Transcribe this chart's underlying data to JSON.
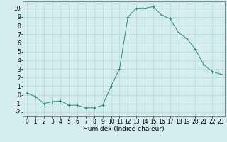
{
  "x": [
    0,
    1,
    2,
    3,
    4,
    5,
    6,
    7,
    8,
    9,
    10,
    11,
    12,
    13,
    14,
    15,
    16,
    17,
    18,
    19,
    20,
    21,
    22,
    23
  ],
  "y": [
    0.2,
    -0.2,
    -1.0,
    -0.8,
    -0.7,
    -1.2,
    -1.2,
    -1.5,
    -1.5,
    -1.2,
    1.0,
    3.0,
    9.0,
    10.0,
    10.0,
    10.2,
    9.2,
    8.8,
    7.2,
    6.5,
    5.3,
    3.5,
    2.7,
    2.4
  ],
  "line_color": "#2e8b7a",
  "marker": "+",
  "marker_size": 3,
  "bg_color": "#d4eeee",
  "grid_color": "#b8d8d8",
  "xlabel": "Humidex (Indice chaleur)",
  "ylabel": "",
  "xlim": [
    -0.5,
    23.5
  ],
  "ylim": [
    -2.5,
    10.8
  ],
  "yticks": [
    -2,
    -1,
    0,
    1,
    2,
    3,
    4,
    5,
    6,
    7,
    8,
    9,
    10
  ],
  "xticks": [
    0,
    1,
    2,
    3,
    4,
    5,
    6,
    7,
    8,
    9,
    10,
    11,
    12,
    13,
    14,
    15,
    16,
    17,
    18,
    19,
    20,
    21,
    22,
    23
  ],
  "label_fontsize": 6.5,
  "tick_fontsize": 5.5
}
